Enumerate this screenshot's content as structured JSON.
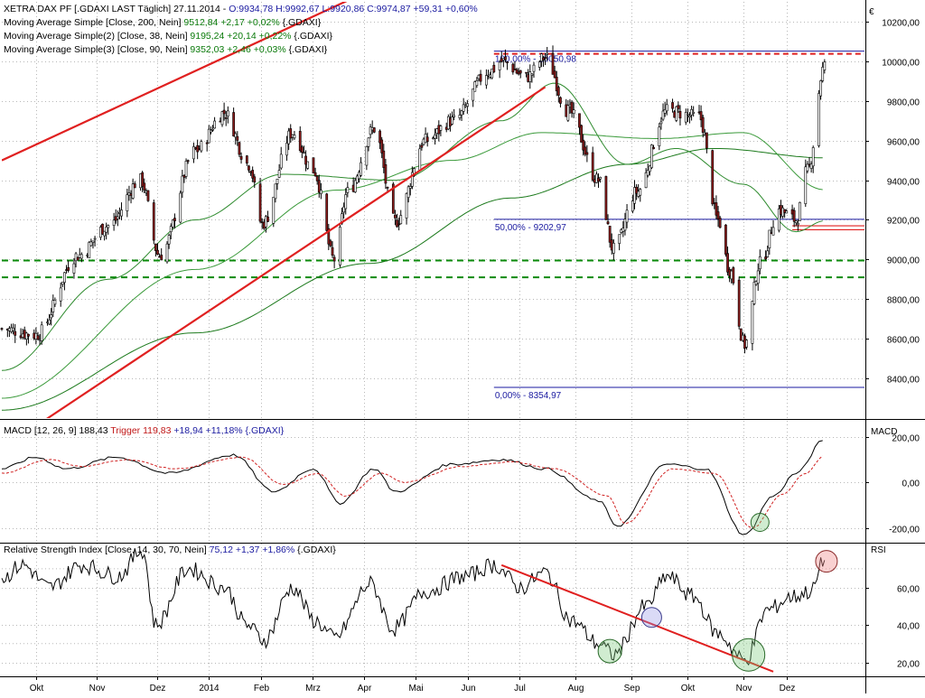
{
  "currency_symbol": "€",
  "colors": {
    "bull": "#ffffff",
    "bear": "#8b1a1a",
    "ma200": "#1c7a1c",
    "ma38": "#2e8b2e",
    "ma90": "#3a9a3a",
    "trendline": "#e02020",
    "support": "#0a8a0a",
    "fib": "#1a1aa0",
    "macd_trigger": "#d02020",
    "grid": "#b8b8b8",
    "legend_blue": "#1a1aa0",
    "legend_green": "#0a7a0a",
    "legend_red": "#c01818"
  },
  "legends": {
    "price": [
      {
        "prefix": "XETRA DAX PF [.GDAXI LAST Täglich] 27.11.2014 - ",
        "value": "O:9934,78 H:9992,67 L:9920,86 C:9974,87 +59,31 +0,60%",
        "suffix": ""
      },
      {
        "prefix": "Moving Average Simple [Close, 200, Nein] ",
        "value": "9512,84 +2,17 +0,02%",
        "suffix": " {.GDAXI}"
      },
      {
        "prefix": "Moving Average Simple(2) [Close, 38, Nein] ",
        "value": "9195,24 +20,14 +0,22%",
        "suffix": " {.GDAXI}"
      },
      {
        "prefix": "Moving Average Simple(3) [Close, 90, Nein] ",
        "value": "9352,03 +2,46 +0,03%",
        "suffix": " {.GDAXI}"
      }
    ],
    "macd": {
      "prefix": "MACD [12, 26, 9] ",
      "value": "188,43",
      "trigger": "Trigger 119,83",
      "rest": " +18,94 +11,18% {.GDAXI}"
    },
    "rsi": {
      "prefix": "Relative Strength Index [Close, 14, 30, 70, Nein] ",
      "value": "75,12 +1,37 +1,86%",
      "suffix": " {.GDAXI}"
    }
  },
  "panel_labels": {
    "macd": "MACD",
    "rsi": "RSI"
  },
  "fib_labels": {
    "top": "100,00% - 10050,98",
    "mid": "50,00% - 9202,97",
    "bottom": "0,00% - 8354,97"
  },
  "x_axis": {
    "labels": [
      "Okt",
      "Nov",
      "Dez",
      "2014",
      "Feb",
      "Mrz",
      "Apr",
      "Mai",
      "Jun",
      "Jul",
      "Aug",
      "Sep",
      "Okt",
      "Nov",
      "Dez"
    ],
    "positions": [
      0.04,
      0.11,
      0.18,
      0.24,
      0.3,
      0.36,
      0.42,
      0.48,
      0.54,
      0.6,
      0.665,
      0.73,
      0.795,
      0.86,
      0.91
    ]
  },
  "chart_data": [
    {
      "type": "candlestick",
      "title": "XETRA DAX PF [.GDAXI LAST Täglich] 27.11.2014",
      "ylim": [
        8200,
        10300
      ],
      "y_ticks": [
        "8400,00",
        "8600,00",
        "8800,00",
        "9000,00",
        "9200,00",
        "9400,00",
        "9600,00",
        "9800,00",
        "10000,00",
        "10200,00"
      ],
      "y_tick_values": [
        8400,
        8600,
        8800,
        9000,
        9200,
        9400,
        9600,
        9800,
        10000,
        10200
      ],
      "x_range": [
        "2013-09-20",
        "2014-12-18"
      ],
      "close_keypoints": [
        [
          "2013-09-20",
          8650
        ],
        [
          "2013-10-08",
          8620
        ],
        [
          "2013-10-30",
          9020
        ],
        [
          "2013-11-15",
          9170
        ],
        [
          "2013-12-02",
          9400
        ],
        [
          "2013-12-12",
          9020
        ],
        [
          "2013-12-31",
          9550
        ],
        [
          "2014-01-15",
          9740
        ],
        [
          "2014-01-28",
          9480
        ],
        [
          "2014-02-04",
          9180
        ],
        [
          "2014-02-20",
          9640
        ],
        [
          "2014-03-03",
          9450
        ],
        [
          "2014-03-14",
          9000
        ],
        [
          "2014-03-21",
          9340
        ],
        [
          "2014-04-04",
          9660
        ],
        [
          "2014-04-15",
          9190
        ],
        [
          "2014-05-01",
          9600
        ],
        [
          "2014-05-15",
          9700
        ],
        [
          "2014-06-04",
          9950
        ],
        [
          "2014-06-10",
          10000
        ],
        [
          "2014-06-23",
          9920
        ],
        [
          "2014-07-03",
          10020
        ],
        [
          "2014-07-15",
          9750
        ],
        [
          "2014-07-31",
          9400
        ],
        [
          "2014-08-08",
          9050
        ],
        [
          "2014-08-20",
          9340
        ],
        [
          "2014-09-05",
          9750
        ],
        [
          "2014-09-22",
          9720
        ],
        [
          "2014-10-02",
          9200
        ],
        [
          "2014-10-08",
          8950
        ],
        [
          "2014-10-16",
          8570
        ],
        [
          "2014-10-24",
          8980
        ],
        [
          "2014-11-03",
          9250
        ],
        [
          "2014-11-12",
          9200
        ],
        [
          "2014-11-18",
          9450
        ],
        [
          "2014-11-27",
          9975
        ]
      ],
      "series": [
        {
          "name": "Moving Average Simple [Close, 200, Nein]",
          "keypoints": [
            [
              "2013-09-20",
              8240
            ],
            [
              "2013-12-31",
              8630
            ],
            [
              "2014-04-01",
              8980
            ],
            [
              "2014-06-15",
              9310
            ],
            [
              "2014-08-15",
              9480
            ],
            [
              "2014-09-30",
              9560
            ],
            [
              "2014-11-27",
              9513
            ]
          ]
        },
        {
          "name": "Moving Average Simple(2) [Close, 38, Nein]",
          "keypoints": [
            [
              "2013-09-20",
              8440
            ],
            [
              "2013-11-15",
              8900
            ],
            [
              "2013-12-31",
              9200
            ],
            [
              "2014-02-15",
              9430
            ],
            [
              "2014-04-15",
              9400
            ],
            [
              "2014-06-10",
              9700
            ],
            [
              "2014-07-08",
              9890
            ],
            [
              "2014-08-15",
              9480
            ],
            [
              "2014-09-10",
              9560
            ],
            [
              "2014-10-15",
              9380
            ],
            [
              "2014-11-12",
              9140
            ],
            [
              "2014-11-27",
              9195
            ]
          ]
        },
        {
          "name": "Moving Average Simple(3) [Close, 90, Nein]",
          "keypoints": [
            [
              "2013-09-20",
              8300
            ],
            [
              "2013-12-31",
              8950
            ],
            [
              "2014-03-15",
              9350
            ],
            [
              "2014-05-15",
              9500
            ],
            [
              "2014-07-01",
              9640
            ],
            [
              "2014-09-01",
              9610
            ],
            [
              "2014-10-15",
              9640
            ],
            [
              "2014-11-27",
              9352
            ]
          ]
        }
      ],
      "fibonacci": [
        {
          "label": "100,00% - 10050,98",
          "value": 10050.98
        },
        {
          "label": "50,00% - 9202,97",
          "value": 9202.97
        },
        {
          "label": "0,00% - 8354,97",
          "value": 8354.97
        }
      ],
      "support_lines": [
        8995,
        8910
      ],
      "resistance_line": 10050.98,
      "trendline": {
        "from": [
          "2013-09-20",
          9500
        ],
        "to": [
          "2014-05-15",
          10550
        ]
      },
      "trendline_support": {
        "from": [
          "2013-10-08",
          8160
        ],
        "to": [
          "2014-07-03",
          9870
        ]
      }
    },
    {
      "type": "line",
      "title": "MACD [12, 26, 9]",
      "ylim": [
        -260,
        270
      ],
      "y_ticks": [
        "200,00",
        "0,00",
        "-200,00"
      ],
      "y_tick_values": [
        200,
        0,
        -200
      ],
      "series": [
        {
          "name": "MACD",
          "keypoints": [
            [
              "2013-09-20",
              60
            ],
            [
              "2013-10-08",
              110
            ],
            [
              "2013-10-24",
              60
            ],
            [
              "2013-11-20",
              110
            ],
            [
              "2013-12-17",
              40
            ],
            [
              "2014-01-20",
              120
            ],
            [
              "2014-02-10",
              -40
            ],
            [
              "2014-03-03",
              60
            ],
            [
              "2014-03-17",
              -90
            ],
            [
              "2014-04-04",
              60
            ],
            [
              "2014-04-15",
              -40
            ],
            [
              "2014-05-15",
              80
            ],
            [
              "2014-06-10",
              100
            ],
            [
              "2014-07-03",
              60
            ],
            [
              "2014-07-31",
              -80
            ],
            [
              "2014-08-10",
              -190
            ],
            [
              "2014-09-05",
              80
            ],
            [
              "2014-09-25",
              60
            ],
            [
              "2014-10-16",
              -230
            ],
            [
              "2014-10-31",
              -60
            ],
            [
              "2014-11-12",
              40
            ],
            [
              "2014-11-27",
              188
            ]
          ]
        },
        {
          "name": "Trigger",
          "keypoints": [
            [
              "2013-09-20",
              40
            ],
            [
              "2013-10-15",
              100
            ],
            [
              "2013-11-01",
              70
            ],
            [
              "2013-11-25",
              100
            ],
            [
              "2013-12-20",
              60
            ],
            [
              "2014-01-25",
              110
            ],
            [
              "2014-02-15",
              -10
            ],
            [
              "2014-03-05",
              40
            ],
            [
              "2014-03-20",
              -60
            ],
            [
              "2014-04-08",
              40
            ],
            [
              "2014-04-20",
              0
            ],
            [
              "2014-05-20",
              70
            ],
            [
              "2014-06-15",
              90
            ],
            [
              "2014-07-08",
              60
            ],
            [
              "2014-08-05",
              -60
            ],
            [
              "2014-08-14",
              -180
            ],
            [
              "2014-09-08",
              60
            ],
            [
              "2014-09-30",
              40
            ],
            [
              "2014-10-20",
              -200
            ],
            [
              "2014-11-05",
              -50
            ],
            [
              "2014-11-17",
              40
            ],
            [
              "2014-11-27",
              120
            ]
          ]
        }
      ]
    },
    {
      "type": "line",
      "title": "Relative Strength Index [Close, 14, 30, 70, Nein]",
      "ylim": [
        13,
        83
      ],
      "y_ticks": [
        "60,00",
        "40,00",
        "20,00"
      ],
      "y_tick_values": [
        60,
        40,
        20
      ],
      "bands": [
        70,
        30
      ],
      "series": [
        {
          "name": "RSI",
          "keypoints": [
            [
              "2013-09-20",
              65
            ],
            [
              "2013-10-01",
              72
            ],
            [
              "2013-10-15",
              60
            ],
            [
              "2013-11-01",
              72
            ],
            [
              "2013-11-20",
              66
            ],
            [
              "2013-12-03",
              80
            ],
            [
              "2013-12-10",
              40
            ],
            [
              "2013-12-27",
              70
            ],
            [
              "2014-01-15",
              60
            ],
            [
              "2014-01-27",
              40
            ],
            [
              "2014-02-05",
              32
            ],
            [
              "2014-02-20",
              60
            ],
            [
              "2014-03-04",
              42
            ],
            [
              "2014-03-14",
              33
            ],
            [
              "2014-04-02",
              62
            ],
            [
              "2014-04-14",
              38
            ],
            [
              "2014-05-01",
              58
            ],
            [
              "2014-05-22",
              66
            ],
            [
              "2014-06-06",
              72
            ],
            [
              "2014-06-20",
              60
            ],
            [
              "2014-07-03",
              68
            ],
            [
              "2014-07-17",
              42
            ],
            [
              "2014-07-31",
              30
            ],
            [
              "2014-08-08",
              24
            ],
            [
              "2014-08-25",
              50
            ],
            [
              "2014-09-05",
              66
            ],
            [
              "2014-09-19",
              55
            ],
            [
              "2014-10-02",
              35
            ],
            [
              "2014-10-16",
              21
            ],
            [
              "2014-10-28",
              48
            ],
            [
              "2014-11-10",
              55
            ],
            [
              "2014-11-20",
              58
            ],
            [
              "2014-11-27",
              75
            ]
          ]
        }
      ],
      "trendline": {
        "from": [
          "2014-06-10",
          72
        ],
        "to": [
          "2014-10-31",
          15
        ]
      }
    }
  ]
}
